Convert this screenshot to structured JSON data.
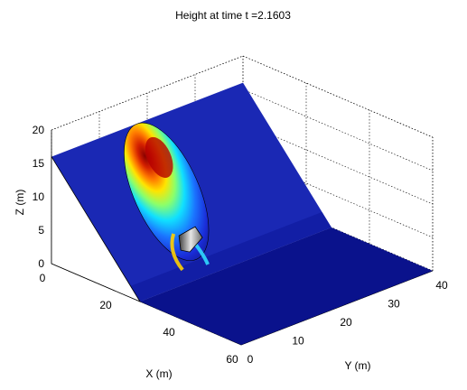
{
  "chart_data": {
    "type": "surface",
    "title": "Height at time t =2.1603",
    "xlabel": "X (m)",
    "ylabel": "Y (m)",
    "zlabel": "Z (m)",
    "xlim": [
      0,
      60
    ],
    "ylim": [
      0,
      40
    ],
    "zlim": [
      0,
      20
    ],
    "x_ticks": [
      "0",
      "20",
      "40",
      "60"
    ],
    "y_ticks": [
      "0",
      "10",
      "20",
      "30",
      "40"
    ],
    "z_ticks": [
      "0",
      "5",
      "10",
      "15",
      "20"
    ],
    "grid": true,
    "colormap": "jet",
    "colors": {
      "surface_base": "#0a128c",
      "surface_low": "#101a9e",
      "surface_high": "#1a28b4",
      "peak": "#b40000",
      "object": "#9a9a9a"
    },
    "plateau_height": 16,
    "slope_start_x": 28,
    "object_x": 25,
    "object_y": 12,
    "object_height": 7,
    "peak_height": 19
  }
}
